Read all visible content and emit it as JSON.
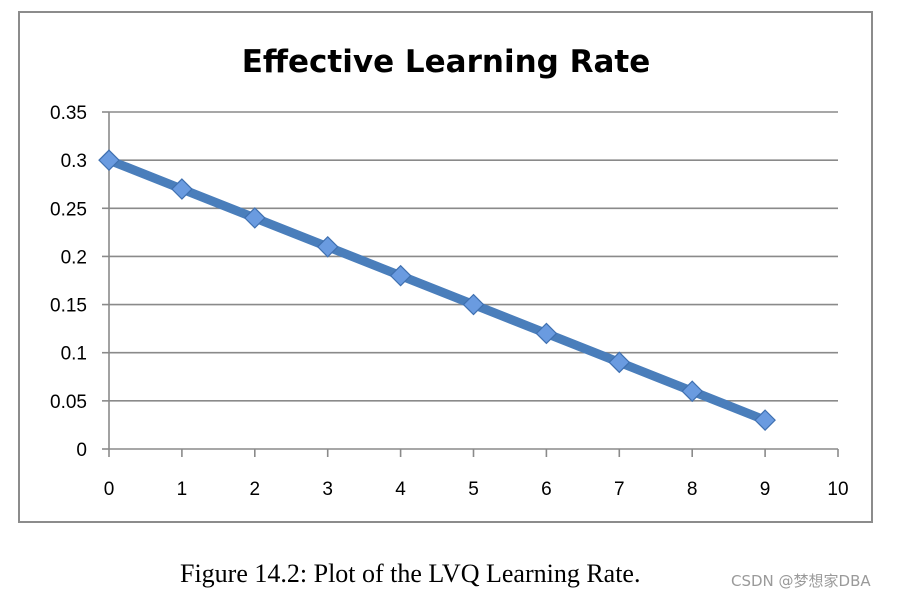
{
  "chart_data": {
    "type": "line",
    "title": "Effective Learning Rate",
    "xlabel": "",
    "ylabel": "",
    "x": [
      0,
      1,
      2,
      3,
      4,
      5,
      6,
      7,
      8,
      9
    ],
    "series": [
      {
        "name": "Effective Learning Rate",
        "values": [
          0.3,
          0.27,
          0.24,
          0.21,
          0.18,
          0.15,
          0.12,
          0.09,
          0.06,
          0.03
        ]
      }
    ],
    "xlim": [
      0,
      10
    ],
    "ylim": [
      0,
      0.35
    ],
    "x_ticks": [
      "0",
      "1",
      "2",
      "3",
      "4",
      "5",
      "6",
      "7",
      "8",
      "9",
      "10"
    ],
    "y_ticks": [
      "0",
      "0.05",
      "0.1",
      "0.15",
      "0.2",
      "0.25",
      "0.3",
      "0.35"
    ],
    "x_tick_values": [
      0,
      1,
      2,
      3,
      4,
      5,
      6,
      7,
      8,
      9,
      10
    ],
    "y_tick_values": [
      0,
      0.05,
      0.1,
      0.15,
      0.2,
      0.25,
      0.3,
      0.35
    ],
    "grid": true,
    "legend": "none",
    "line_color": "#4a7ebb",
    "marker_color": "#6a9be0"
  },
  "caption": "Figure 14.2: Plot of the LVQ Learning Rate.",
  "watermark": "CSDN @梦想家DBA"
}
